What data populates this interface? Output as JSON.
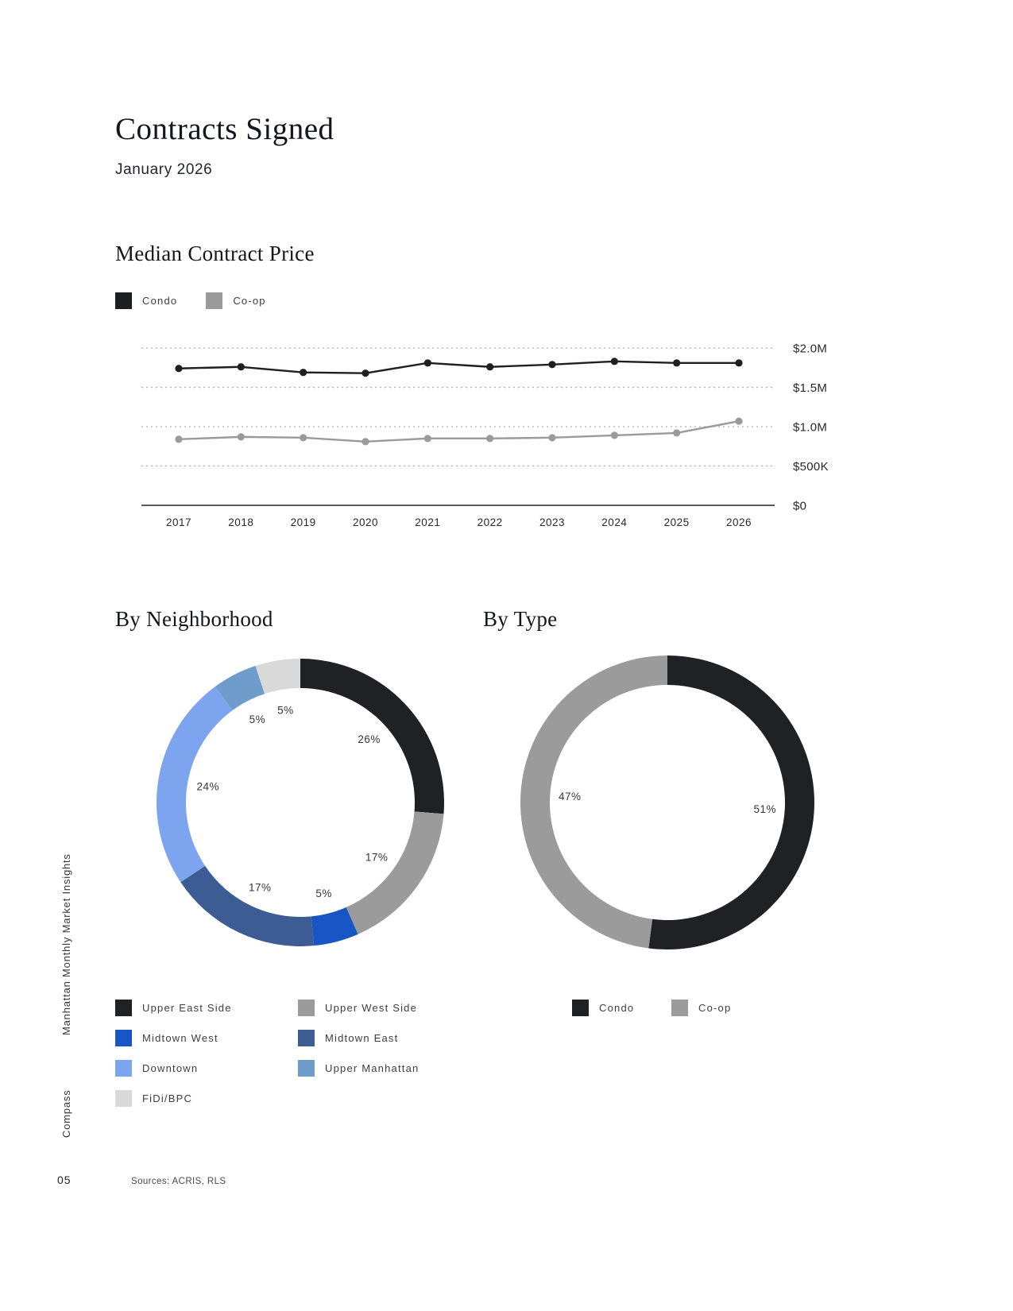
{
  "page": {
    "title": "Contracts Signed",
    "subtitle": "January 2026",
    "sidebar_top": "Manhattan Monthly Market Insights",
    "sidebar_bottom": "Compass",
    "page_number": "05",
    "sources": "Sources: ACRIS, RLS"
  },
  "colors": {
    "condo": "#1d1f22",
    "coop": "#9a9a9a",
    "grid": "#b0b0b0",
    "axis": "#222222",
    "label_text": "#33363c"
  },
  "chart_data": [
    {
      "type": "line",
      "title": "Median Contract Price",
      "x": [
        "2017",
        "2018",
        "2019",
        "2020",
        "2021",
        "2022",
        "2023",
        "2024",
        "2025",
        "2026"
      ],
      "series": [
        {
          "name": "Condo",
          "color": "#1d1f22",
          "values": [
            1740000,
            1760000,
            1690000,
            1680000,
            1810000,
            1760000,
            1790000,
            1830000,
            1810000,
            1810000
          ]
        },
        {
          "name": "Co-op",
          "color": "#9a9a9a",
          "values": [
            840000,
            870000,
            860000,
            810000,
            850000,
            850000,
            860000,
            890000,
            920000,
            1070000
          ]
        }
      ],
      "ylim": [
        0,
        2000000
      ],
      "yticks": [
        {
          "value": 2000000,
          "label": "$2.0M"
        },
        {
          "value": 1500000,
          "label": "$1.5M"
        },
        {
          "value": 1000000,
          "label": "$1.0M"
        },
        {
          "value": 500000,
          "label": "$500K"
        },
        {
          "value": 0,
          "label": "$0"
        }
      ],
      "grid": "dotted-horizontal",
      "legend_position": "top-left"
    },
    {
      "type": "pie",
      "donut": true,
      "title": "By Neighborhood",
      "slices": [
        {
          "label": "Upper East Side",
          "pct": 26,
          "color": "#1f2125"
        },
        {
          "label": "Upper West Side",
          "pct": 17,
          "color": "#9b9b9b"
        },
        {
          "label": "Midtown West",
          "pct": 5,
          "color": "#1756c4"
        },
        {
          "label": "Midtown East",
          "pct": 17,
          "color": "#3e5c94"
        },
        {
          "label": "Downtown",
          "pct": 24,
          "color": "#7da4ef"
        },
        {
          "label": "Upper Manhattan",
          "pct": 5,
          "color": "#6f9ccb"
        },
        {
          "label": "FiDi/BPC",
          "pct": 5,
          "color": "#d9d9d9"
        }
      ],
      "legend_position": "bottom"
    },
    {
      "type": "pie",
      "donut": true,
      "title": "By Type",
      "slices": [
        {
          "label": "Condo",
          "pct": 51,
          "color": "#1f2125"
        },
        {
          "label": "Co-op",
          "pct": 47,
          "color": "#9b9b9b"
        }
      ],
      "legend_position": "bottom"
    }
  ]
}
